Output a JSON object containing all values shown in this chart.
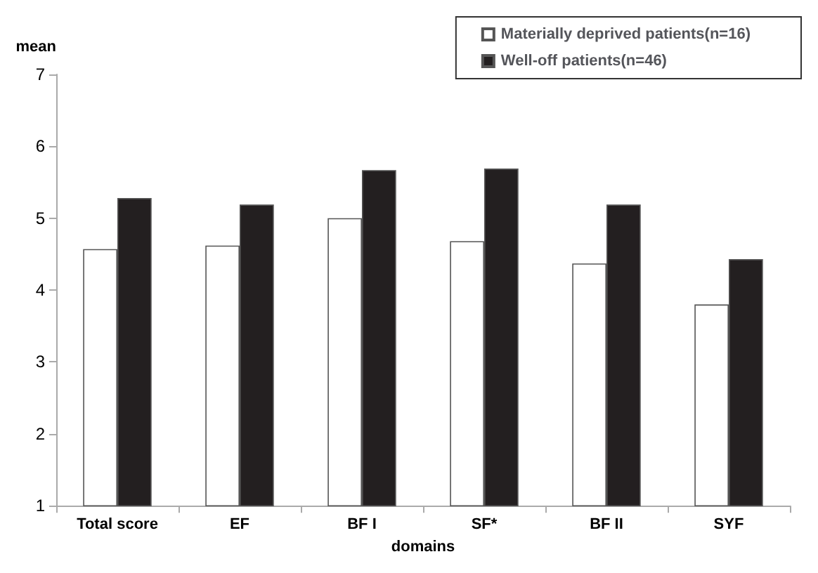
{
  "chart_data": {
    "type": "bar",
    "ylabel": "mean",
    "xlabel": "domains",
    "categories": [
      "Total score",
      "EF",
      "BF I",
      "SF*",
      "BF II",
      "SYF"
    ],
    "series": [
      {
        "name": "Materially deprived patients(n=16)",
        "color": "#ffffff",
        "values": [
          4.57,
          4.62,
          5.0,
          4.68,
          4.37,
          3.8
        ]
      },
      {
        "name": "Well-off patients(n=46)",
        "color": "#231f20",
        "values": [
          5.28,
          5.19,
          5.67,
          5.69,
          5.19,
          4.43
        ]
      }
    ],
    "ylim": [
      1,
      7
    ],
    "yticks": [
      1,
      2,
      3,
      4,
      5,
      6,
      7
    ],
    "grid": false,
    "legend": "top right"
  }
}
